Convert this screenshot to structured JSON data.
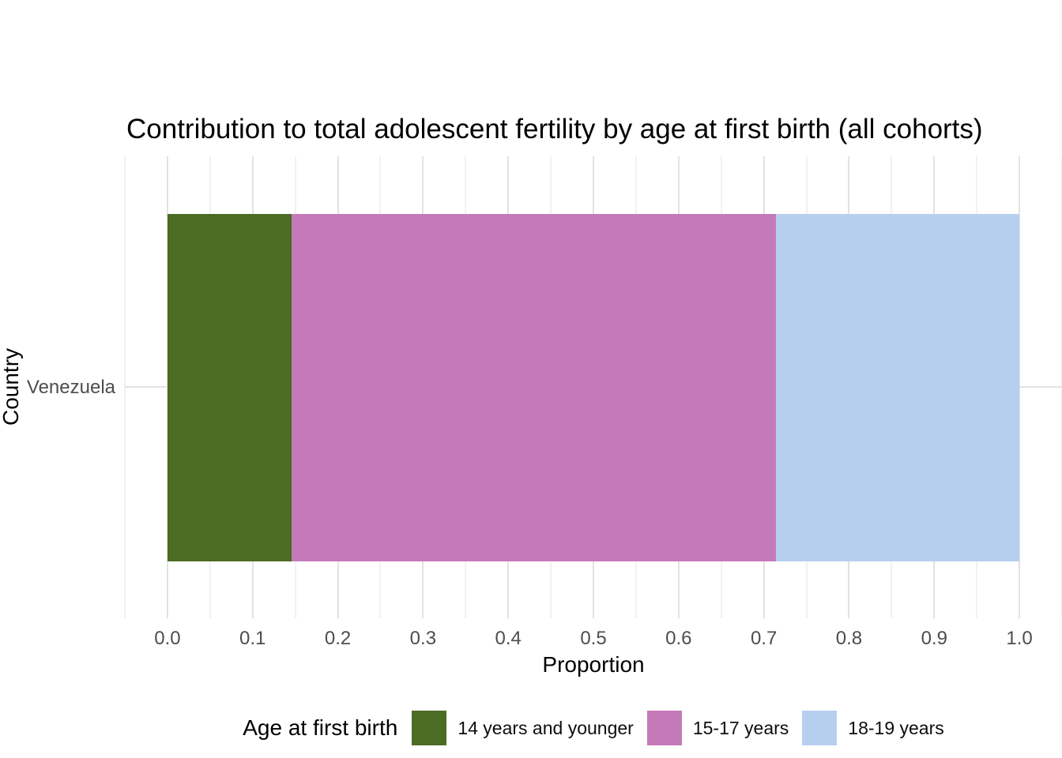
{
  "figure": {
    "title": "Contribution to total adolescent fertility by age at first birth (all cohorts)"
  },
  "chart_data": {
    "type": "bar",
    "orientation": "horizontal",
    "stacked": true,
    "title": "Contribution to total adolescent fertility by age at first birth (all cohorts)",
    "xlabel": "Proportion",
    "ylabel": "Country",
    "categories": [
      "Venezuela"
    ],
    "series": [
      {
        "name": "14 years and younger",
        "values": [
          0.146
        ],
        "color": "#4c6b23"
      },
      {
        "name": "15-17 years",
        "values": [
          0.568
        ],
        "color": "#c47ab8"
      },
      {
        "name": "18-19 years",
        "values": [
          0.286
        ],
        "color": "#b6cfee"
      }
    ],
    "x_ticks": [
      "0.0",
      "0.1",
      "0.2",
      "0.3",
      "0.4",
      "0.5",
      "0.6",
      "0.7",
      "0.8",
      "0.9",
      "1.0"
    ],
    "x_minor_step": 0.05,
    "xlim": [
      -0.05,
      1.05
    ],
    "grid": true,
    "legend_title": "Age at first birth",
    "legend_position": "bottom"
  },
  "colors": {
    "grid_major": "#e2e2e2",
    "grid_minor": "#f1f1f1",
    "tick_text": "#4d4d4d",
    "text": "#000000",
    "background": "#ffffff"
  }
}
